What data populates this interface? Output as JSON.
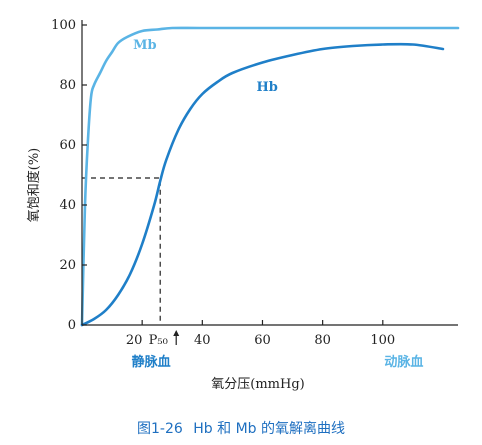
{
  "chart_data": {
    "type": "line",
    "xlabel": "氧分压(mmHg)",
    "ylabel": "氧饱和度(%)",
    "xlim": [
      0,
      125
    ],
    "ylim": [
      0,
      100
    ],
    "x_ticks": [
      "20",
      "40",
      "60",
      "80",
      "100"
    ],
    "y_ticks": [
      "0",
      "20",
      "40",
      "60",
      "80",
      "100"
    ],
    "p50_label": "P₅₀",
    "p50_value": 26,
    "p50_saturation": 49,
    "series": [
      {
        "name": "Mb",
        "color": "#5ab4e5",
        "x": [
          0,
          1,
          2,
          3,
          4,
          6,
          8,
          10,
          12,
          15,
          20,
          25,
          30,
          40,
          60,
          80,
          100,
          125
        ],
        "y": [
          0,
          40,
          62,
          76,
          80,
          84,
          88,
          91,
          94,
          96,
          98,
          98.5,
          99,
          99,
          99,
          99,
          99,
          99
        ]
      },
      {
        "name": "Hb",
        "color": "#1f7fc8",
        "x": [
          0,
          4,
          8,
          12,
          16,
          20,
          24,
          26,
          28,
          32,
          36,
          40,
          45,
          50,
          60,
          70,
          80,
          90,
          100,
          110,
          120
        ],
        "y": [
          0,
          2,
          5,
          10,
          17,
          27,
          40,
          48,
          55,
          65,
          72,
          77,
          81,
          84,
          87.5,
          90,
          92,
          93,
          93.5,
          93.5,
          92
        ]
      }
    ],
    "annotations": {
      "venous": "静脉血",
      "arterial": "动脉血"
    }
  },
  "caption": {
    "figure": "图1-26",
    "text": "Hb 和 Mb 的氧解离曲线"
  }
}
